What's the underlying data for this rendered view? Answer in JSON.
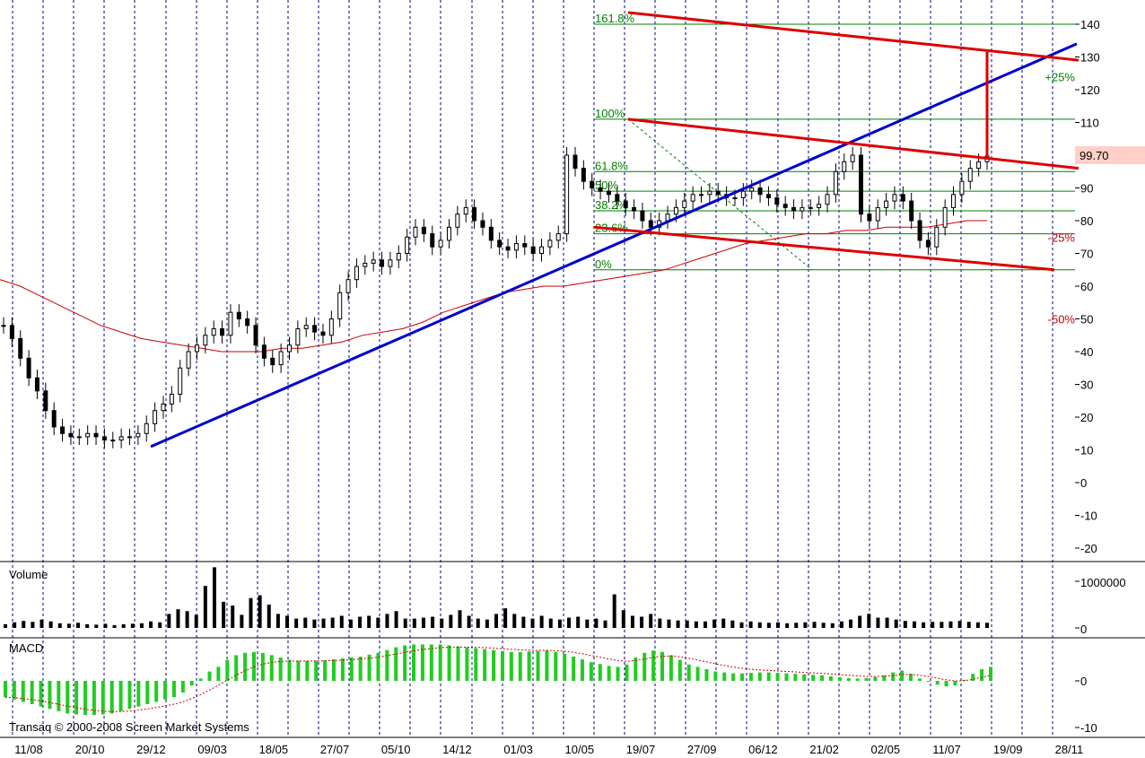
{
  "chart_data": {
    "type": "candlestick",
    "x_ticks": [
      "11/08",
      "20/10",
      "29/12",
      "09/03",
      "18/05",
      "27/07",
      "05/10",
      "14/12",
      "01/03",
      "10/05",
      "19/07",
      "27/09",
      "06/12",
      "21/02",
      "02/05",
      "11/07",
      "19/09",
      "28/11"
    ],
    "price_panel": {
      "ylim": [
        -20,
        140
      ],
      "y_ticks": [
        "140",
        "130",
        "120",
        "110",
        "100",
        "90",
        "80",
        "70",
        "60",
        "50",
        "40",
        "30",
        "20",
        "10",
        "0",
        "-10",
        "-20"
      ],
      "last_price": "99.70",
      "fib_levels": [
        {
          "label": "161.8%",
          "value": 140
        },
        {
          "label": "100%",
          "value": 111
        },
        {
          "label": "61.8%",
          "value": 95
        },
        {
          "label": "50%",
          "value": 89
        },
        {
          "label": "38.2%",
          "value": 83
        },
        {
          "label": "23.6%",
          "value": 76
        },
        {
          "label": "0%",
          "value": 65
        }
      ],
      "projection_labels": [
        {
          "label": "+25%",
          "value": 124
        },
        {
          "label": "-25%",
          "value": 75
        },
        {
          "label": "-50%",
          "value": 50
        }
      ],
      "closes": [
        48,
        44,
        38,
        32,
        28,
        22,
        17,
        15,
        14,
        14,
        15,
        14,
        13,
        13,
        14,
        14,
        15,
        18,
        22,
        24,
        27,
        35,
        40,
        42,
        45,
        47,
        45,
        52,
        50,
        48,
        42,
        38,
        36,
        40,
        42,
        47,
        48,
        46,
        45,
        50,
        58,
        62,
        66,
        67,
        68,
        66,
        68,
        70,
        75,
        78,
        76,
        72,
        74,
        78,
        82,
        84,
        80,
        78,
        74,
        72,
        71,
        73,
        72,
        70,
        72,
        74,
        76,
        100,
        96,
        92,
        90,
        89,
        88,
        86,
        84,
        83,
        80,
        78,
        80,
        82,
        84,
        86,
        88,
        88,
        89,
        88,
        87,
        87,
        89,
        90,
        88,
        87,
        85,
        84,
        83,
        84,
        84,
        85,
        88,
        95,
        98,
        100,
        82,
        80,
        84,
        86,
        88,
        86,
        80,
        74,
        72,
        78,
        84,
        88,
        92,
        96,
        98,
        99.7
      ],
      "ma": [
        62,
        60,
        57,
        54,
        51,
        48,
        46,
        44,
        43,
        42,
        41,
        40,
        40,
        40,
        41,
        41,
        42,
        43,
        45,
        46,
        47,
        49,
        52,
        54,
        56,
        58,
        59,
        60,
        60,
        61,
        62,
        63,
        64,
        65,
        67,
        69,
        71,
        73,
        74,
        75,
        76,
        76,
        77,
        77,
        78,
        78,
        78,
        79,
        80,
        80
      ],
      "blue_trendline": {
        "start": {
          "x": "29/12",
          "y": 11
        },
        "end": {
          "x": "28/11",
          "y": 134
        }
      },
      "red_channel_upper": {
        "start": {
          "x": "27/09",
          "y": 111
        },
        "end": {
          "x": "28/11",
          "y": 96
        }
      },
      "red_channel_lower": {
        "start": {
          "x": "19/07",
          "y": 78
        },
        "end": {
          "x": "28/11",
          "y": 65
        }
      },
      "red_projection_line": {
        "start": {
          "x": "27/09",
          "y": 143
        },
        "end": {
          "x": "28/11",
          "y": 129
        }
      }
    },
    "volume_panel": {
      "title": "Volume",
      "y_ticks": [
        "1000000",
        "0"
      ],
      "ylim": [
        0,
        1300000
      ],
      "values": [
        80000,
        120000,
        150000,
        130000,
        180000,
        140000,
        100000,
        90000,
        110000,
        80000,
        70000,
        90000,
        60000,
        80000,
        90000,
        100000,
        140000,
        120000,
        300000,
        400000,
        360000,
        280000,
        900000,
        1300000,
        560000,
        480000,
        280000,
        640000,
        700000,
        500000,
        300000,
        260000,
        200000,
        220000,
        180000,
        200000,
        220000,
        260000,
        180000,
        240000,
        260000,
        220000,
        300000,
        360000,
        200000,
        200000,
        220000,
        240000,
        200000,
        280000,
        380000,
        260000,
        200000,
        180000,
        300000,
        420000,
        300000,
        240000,
        200000,
        260000,
        200000,
        180000,
        220000,
        240000,
        180000,
        200000,
        160000,
        720000,
        380000,
        260000,
        240000,
        300000,
        200000,
        180000,
        160000,
        160000,
        140000,
        140000,
        180000,
        200000,
        160000,
        120000,
        140000,
        120000,
        110000,
        120000,
        100000,
        110000,
        120000,
        130000,
        110000,
        100000,
        140000,
        180000,
        260000,
        300000,
        220000,
        220000,
        180000,
        150000,
        140000,
        120000,
        130000,
        130000,
        140000,
        150000,
        130000,
        120000,
        110000
      ]
    },
    "macd_panel": {
      "title": "MACD",
      "y_ticks": [
        "0",
        "-10"
      ],
      "ylim": [
        -10,
        10
      ],
      "values": [
        -3.5,
        -4,
        -4.5,
        -5,
        -5.5,
        -6,
        -6.5,
        -7,
        -7.2,
        -7.3,
        -7.3,
        -7.2,
        -7,
        -6.5,
        -6,
        -5.5,
        -5,
        -4.5,
        -4,
        -3.5,
        -2.5,
        -1,
        0.5,
        2,
        3,
        4.5,
        5.5,
        6,
        6.2,
        6,
        5.5,
        5,
        4.5,
        4.3,
        4.3,
        4.3,
        4.4,
        4.6,
        4.8,
        5,
        5.2,
        5.6,
        6,
        6.6,
        7.2,
        7.6,
        7.8,
        7.8,
        7.8,
        7.8,
        7.6,
        7.4,
        7.2,
        7,
        6.8,
        6.6,
        6.4,
        6.2,
        6.2,
        6.3,
        6.4,
        6.5,
        6.2,
        5.8,
        5.2,
        4.6,
        4,
        3.6,
        3.2,
        3,
        3.5,
        5,
        6,
        6.5,
        6.2,
        5.5,
        4.5,
        3.5,
        3,
        2.5,
        2,
        1.8,
        1.6,
        1.6,
        1.7,
        1.8,
        1.8,
        1.7,
        1.6,
        1.5,
        1.4,
        1.3,
        1.2,
        1,
        0.8,
        0.6,
        0.5,
        0.6,
        0.8,
        1.2,
        1.8,
        2.2,
        1.5,
        0.5,
        -0.2,
        -0.8,
        -1.2,
        -1,
        0.2,
        1.5,
        2.5,
        3
      ]
    },
    "copyright": "Transaq © 2000-2008 Screen Market Systems"
  }
}
